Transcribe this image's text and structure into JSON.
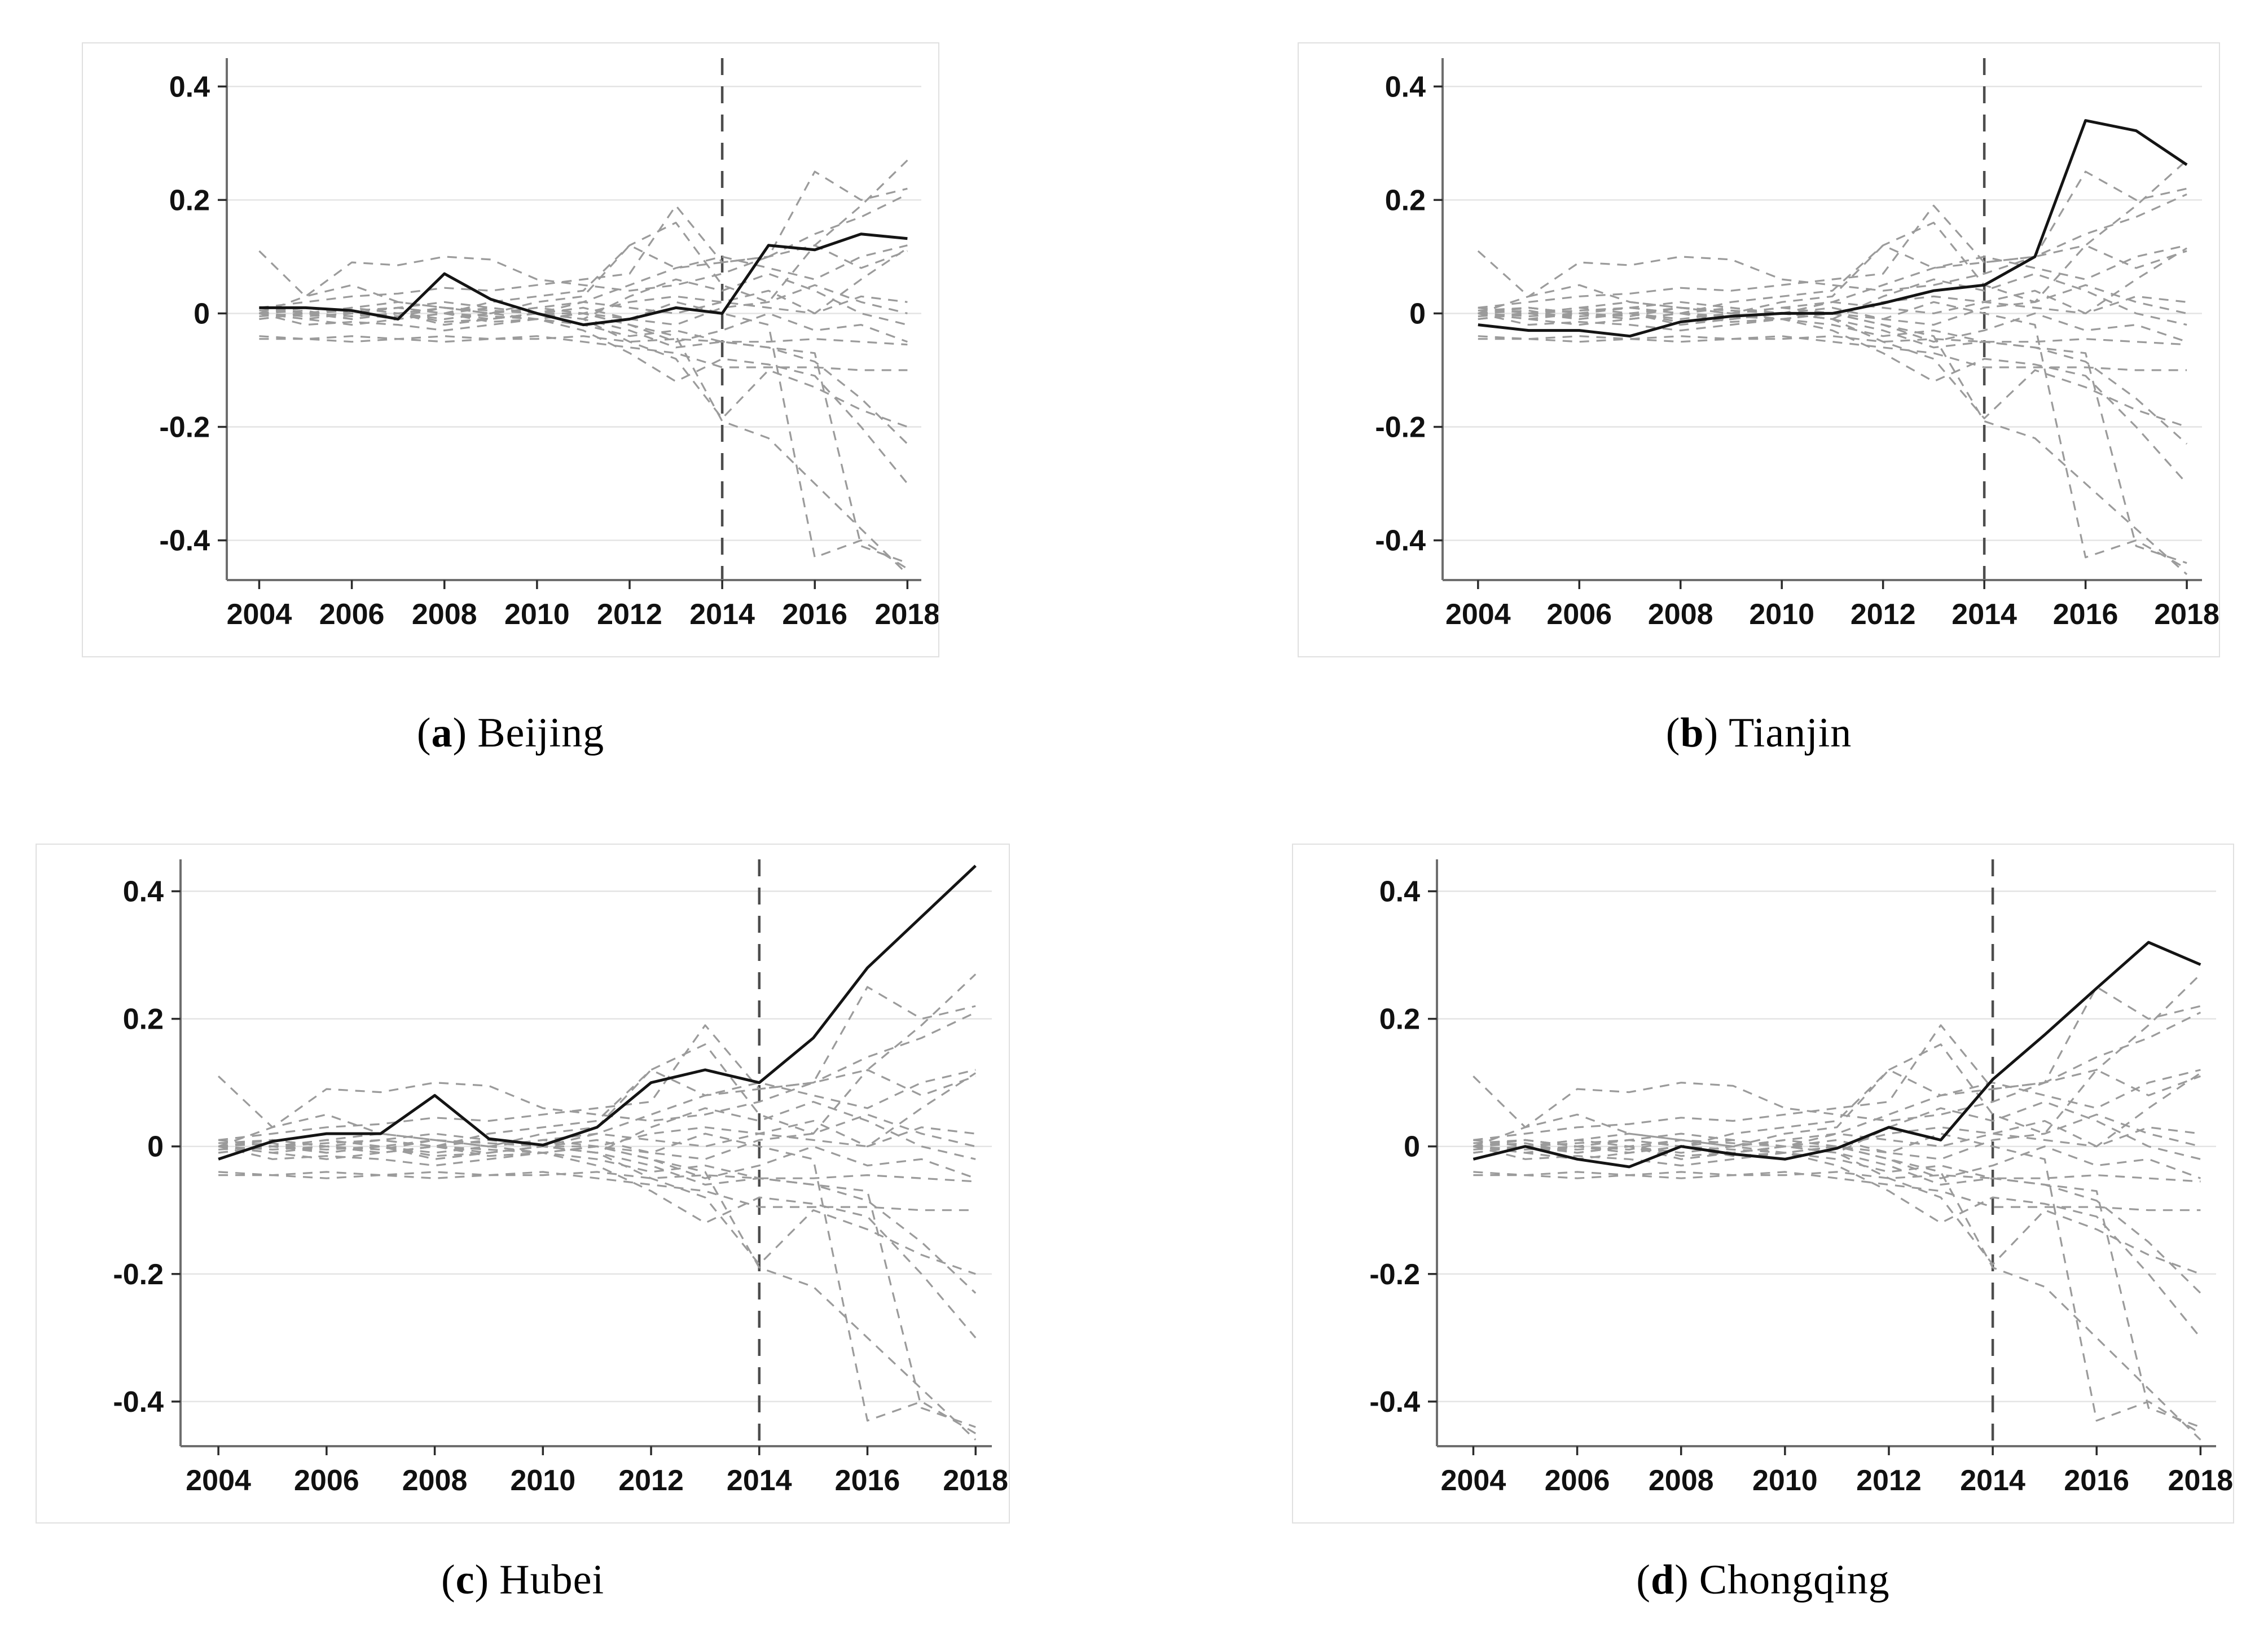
{
  "punct": {
    "open": "(",
    "close": ")"
  },
  "chart_data": {
    "type": "line",
    "title": "",
    "xlabel": "",
    "ylabel": "",
    "x": [
      2004,
      2005,
      2006,
      2007,
      2008,
      2009,
      2010,
      2011,
      2012,
      2013,
      2014,
      2015,
      2016,
      2017,
      2018
    ],
    "x_ticks": [
      2004,
      2006,
      2008,
      2010,
      2012,
      2014,
      2016,
      2018
    ],
    "y_ticks": [
      {
        "value": 0.4,
        "label": "0.4"
      },
      {
        "value": 0.2,
        "label": "0.2"
      },
      {
        "value": 0,
        "label": "0"
      },
      {
        "value": -0.2,
        "label": "-0.2"
      },
      {
        "value": -0.4,
        "label": "-0.4"
      }
    ],
    "xlim": [
      2003.3,
      2018.3
    ],
    "ylim": [
      -0.47,
      0.45
    ],
    "grid": "horizontal",
    "legend": "none",
    "treatment_year": 2014,
    "treatment_line_style": "vertical-dashed",
    "colors": {
      "treated": "#141414",
      "placebo": "#9b9b9b",
      "treatment_line": "#4d4d4d",
      "gridline": "#e4e4e4",
      "axis": "#6e6e6e",
      "tick": "#2b2b2b",
      "tick_label": "#111111",
      "frame_border": "#e0e0e0",
      "background": "#ffffff"
    },
    "panels": [
      {
        "id": "a",
        "letter": "a",
        "region": "Beijing",
        "treated": [
          0.01,
          0.01,
          0.005,
          -0.01,
          0.07,
          0.025,
          0.0,
          -0.02,
          -0.01,
          0.01,
          0.0,
          0.12,
          0.112,
          0.14,
          0.132
        ]
      },
      {
        "id": "b",
        "letter": "b",
        "region": "Tianjin",
        "treated": [
          -0.02,
          -0.03,
          -0.03,
          -0.04,
          -0.015,
          -0.005,
          0.0,
          0.0,
          0.018,
          0.04,
          0.05,
          0.1,
          0.34,
          0.322,
          0.262
        ]
      },
      {
        "id": "c",
        "letter": "c",
        "region": "Hubei",
        "treated": [
          -0.02,
          0.008,
          0.02,
          0.02,
          0.08,
          0.012,
          0.002,
          0.03,
          0.1,
          0.12,
          0.1,
          0.17,
          0.28,
          0.36,
          0.44
        ]
      },
      {
        "id": "d",
        "letter": "d",
        "region": "Chongqing",
        "treated": [
          -0.02,
          0.0,
          -0.02,
          -0.032,
          0.0,
          -0.012,
          -0.02,
          -0.003,
          0.03,
          0.01,
          0.105,
          0.175,
          0.248,
          0.32,
          0.285
        ]
      }
    ],
    "placebo_series_shared_across_panels": true,
    "placebo_series": [
      [
        0.11,
        0.03,
        0.05,
        0.02,
        0.01,
        0.0,
        0.02,
        0.03,
        0.12,
        0.08,
        0.09,
        0.1,
        0.12,
        0.19,
        0.27
      ],
      [
        0.0,
        0.03,
        0.09,
        0.085,
        0.1,
        0.095,
        0.06,
        0.05,
        0.04,
        0.05,
        0.07,
        0.1,
        0.25,
        0.2,
        0.22
      ],
      [
        0.01,
        0.02,
        0.03,
        0.035,
        0.045,
        0.04,
        0.05,
        0.06,
        0.07,
        0.19,
        0.09,
        0.1,
        0.14,
        0.17,
        0.21
      ],
      [
        0.0,
        0.01,
        0.0,
        0.01,
        0.02,
        0.01,
        0.0,
        0.02,
        0.05,
        0.08,
        0.1,
        0.08,
        0.06,
        0.1,
        0.12
      ],
      [
        -0.01,
        0.0,
        0.01,
        0.02,
        0.01,
        0.0,
        0.01,
        0.0,
        0.02,
        0.03,
        0.02,
        0.01,
        0.0,
        0.06,
        0.115
      ],
      [
        0.0,
        -0.01,
        0.0,
        0.01,
        0.0,
        0.02,
        0.03,
        0.04,
        0.12,
        0.16,
        0.05,
        0.02,
        0.12,
        0.08,
        0.11
      ],
      [
        0.005,
        0.01,
        0.0,
        -0.005,
        0.01,
        0.0,
        0.01,
        0.02,
        0.01,
        0.0,
        0.02,
        0.04,
        0.0,
        0.03,
        0.02
      ],
      [
        -0.005,
        0.0,
        0.005,
        0.01,
        0.0,
        -0.01,
        0.0,
        0.01,
        -0.01,
        -0.02,
        0.01,
        0.02,
        0.05,
        0.02,
        0.0
      ],
      [
        0.01,
        0.0,
        -0.01,
        0.0,
        0.01,
        0.005,
        0.0,
        -0.01,
        0.03,
        0.06,
        0.04,
        0.07,
        0.04,
        0.0,
        -0.02
      ],
      [
        0.0,
        -0.01,
        -0.02,
        -0.01,
        0.0,
        -0.015,
        -0.01,
        0.0,
        -0.02,
        -0.05,
        -0.03,
        0.0,
        -0.03,
        -0.02,
        -0.05
      ],
      [
        -0.045,
        -0.045,
        -0.05,
        -0.045,
        -0.04,
        -0.045,
        -0.045,
        -0.04,
        -0.05,
        -0.045,
        -0.05,
        -0.05,
        -0.045,
        -0.05,
        -0.055
      ],
      [
        -0.04,
        -0.045,
        -0.04,
        -0.045,
        -0.05,
        -0.045,
        -0.04,
        -0.05,
        -0.06,
        -0.07,
        -0.095,
        -0.095,
        -0.095,
        -0.1,
        -0.1
      ],
      [
        0.0,
        0.005,
        -0.01,
        0.0,
        -0.02,
        -0.01,
        0.0,
        -0.01,
        -0.05,
        -0.08,
        -0.185,
        -0.1,
        -0.13,
        -0.17,
        -0.2
      ],
      [
        0.01,
        0.0,
        0.01,
        0.0,
        -0.01,
        0.0,
        -0.01,
        -0.02,
        -0.04,
        -0.03,
        -0.05,
        -0.06,
        -0.085,
        -0.15,
        -0.23
      ],
      [
        0.0,
        -0.02,
        -0.015,
        -0.02,
        -0.03,
        -0.02,
        -0.01,
        -0.03,
        -0.07,
        -0.12,
        -0.08,
        -0.09,
        -0.11,
        -0.2,
        -0.3
      ],
      [
        0.0,
        0.01,
        0.0,
        -0.01,
        0.0,
        0.01,
        0.0,
        0.0,
        -0.01,
        0.02,
        0.0,
        -0.02,
        -0.43,
        -0.4,
        -0.45
      ],
      [
        -0.01,
        0.0,
        -0.005,
        0.0,
        -0.015,
        -0.01,
        0.0,
        -0.01,
        -0.03,
        -0.06,
        -0.05,
        -0.06,
        -0.07,
        -0.41,
        -0.44
      ],
      [
        0.0,
        -0.005,
        0.0,
        -0.01,
        0.0,
        -0.005,
        -0.01,
        0.0,
        -0.02,
        -0.04,
        -0.19,
        -0.22,
        -0.3,
        -0.38,
        -0.46
      ]
    ]
  }
}
